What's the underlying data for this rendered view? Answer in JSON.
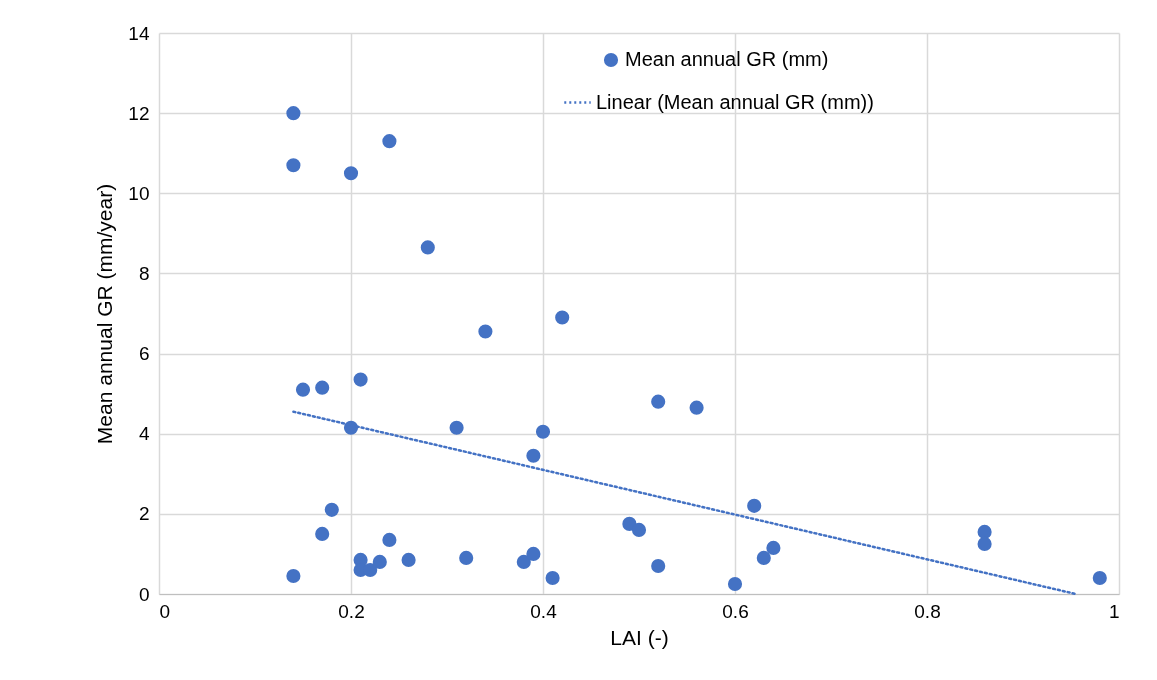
{
  "chart_data": {
    "type": "scatter",
    "xlabel": "LAI (-)",
    "ylabel": "Mean annual GR (mm/year)",
    "xlim": [
      0,
      1
    ],
    "xticks": [
      0,
      0.2,
      0.4,
      0.6,
      0.8,
      1
    ],
    "ylim": [
      0,
      14
    ],
    "yticks": [
      0,
      2,
      4,
      6,
      8,
      10,
      12,
      14
    ],
    "grid": true,
    "legend": "top right",
    "series": [
      {
        "name": "Mean annual GR (mm)",
        "marker": "circle",
        "color": "#4472c4",
        "x": [
          0.14,
          0.14,
          0.2,
          0.24,
          0.28,
          0.34,
          0.42,
          0.15,
          0.17,
          0.21,
          0.2,
          0.31,
          0.4,
          0.39,
          0.52,
          0.56,
          0.18,
          0.17,
          0.14,
          0.21,
          0.21,
          0.22,
          0.23,
          0.24,
          0.26,
          0.32,
          0.38,
          0.39,
          0.41,
          0.49,
          0.5,
          0.52,
          0.6,
          0.62,
          0.63,
          0.64,
          0.86,
          0.86,
          0.98
        ],
        "values": [
          12.0,
          10.7,
          10.5,
          11.3,
          8.65,
          6.55,
          6.9,
          5.1,
          5.15,
          5.35,
          4.15,
          4.15,
          4.05,
          3.45,
          4.8,
          4.65,
          2.1,
          1.5,
          0.45,
          0.85,
          0.6,
          0.6,
          0.8,
          1.35,
          0.85,
          0.9,
          0.8,
          1.0,
          0.4,
          1.75,
          1.6,
          0.7,
          0.25,
          2.2,
          0.9,
          1.15,
          1.55,
          1.25,
          0.4
        ]
      },
      {
        "name": "Linear (Mean annual GR (mm))",
        "type": "line",
        "line_style": "dotted",
        "color": "#4472c4",
        "x": [
          0.14,
          0.955
        ],
        "values": [
          4.55,
          0
        ]
      }
    ]
  }
}
